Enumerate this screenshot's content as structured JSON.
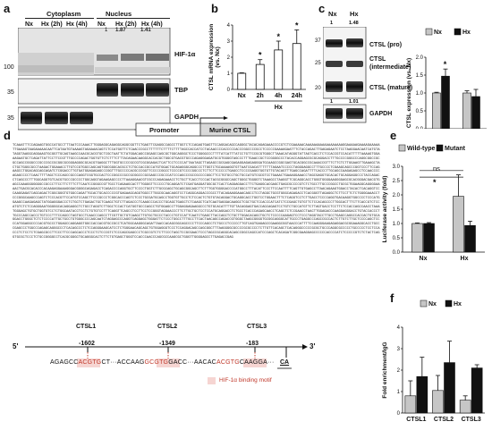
{
  "panel_a": {
    "label": "a",
    "cyto_title": "Cytoplasm",
    "nuc_title": "Nucleus",
    "lanes": [
      "Nx",
      "Hx (2h)",
      "Hx (4h)",
      "Nx",
      "Hx (2h)",
      "Hx (4h)"
    ],
    "hif_ratios": [
      "1",
      "1.87",
      "1.41"
    ],
    "markers": [
      "100",
      "35",
      "35"
    ],
    "bands": [
      "HIF-1α",
      "TBP",
      "GAPDH"
    ]
  },
  "panel_b": {
    "label": "b",
    "group_label": "Hx"
  },
  "panel_c": {
    "label": "c",
    "lanes": [
      "Nx",
      "Hx"
    ],
    "top_ratios": [
      "1",
      "1.48"
    ],
    "bottom_ratios": [
      "1",
      "1.01"
    ],
    "markers": [
      "37",
      "25",
      "20"
    ],
    "band_labels": [
      "CTSL (pro)",
      "CTSL",
      "(intermediate)",
      "CTSL (mature)",
      "GAPDH"
    ]
  },
  "panel_d": {
    "label": "d",
    "promoter_label": "Promoter",
    "gene_label": "Murine CTSL",
    "sequence": "TCAAATTTCCAGAAGTGGCCATGCCTTTAATCCCAAACTTGGGAGGCAGAGGCAGGCGGTTCTGAGTTCGAGGCCAGCCTTGGTCTCCAGAGTGAGTTCCAGGACAGCCAGGGCTACACAGAGAAACCCCGTCTCGAAAAACAAAAAAAAAAAAAAAAAAGGAAAAAGAAAAGAAAAATTGAAAGTAAGAAAAACAATTCATAATGTAAAAGTAGAAAACAGTCTCCATGGTTCTCAACCCGCCTTTTTTCTTTTCTTTTAGCCACCATCCTACAACCCCACCCCCACCCGGCCCCGCCTCCCCCGAAAAGAATTTCTACCAGACTTGAGAGAATCTCCTAAGGAACAATCATGTATAGGTAAGGCAGGAAGTGCGGTTGCAGTAAGCCAACGCACGTGCTCGCTAATTCTATGGACAGCCGGAGCCAGCGCTGGCAGGGCTCCCTGGGGCCCTTTTATCATTTATCCTGTTCCGCGTGGGCTTAAACATAGGGTATTAGTCACCTCTCCACCGTCCACATTTTTAAAAGTGGAAAGAATGCTCAGATTATTCCTTCCGTTTGCCCCAGACTGGTGTTCTCTTTCTTTACAGAACAAGGCACCACGCTGGCGTGACGTGCCCAGAGGGAGATGCGTGGGGTAGCCCTTTGAACCGCTCCGGGGCCCTACACCAGGAGCGCGCAGGACCTTTGCCCCGGGCCCAGGCGGCCGCGCCAGCCGGGCCCGCCCGCCGCGGCGCGGGAGGGCGCACGTGAGGCTTTGGTGCCCCGCCGTCGCGGAGACTCATTCCTCCCCATTAATAGCTTAGAGCCGCGAGCGAGAGGAGAGAGGGATGCAAGCCGGCGAGTGCACGGCCGCAAACCGTTTCTTCTCTTGGAAGTTGAAAGCTACTGCTGGGCGCCTAAGACTGGAAACCTTGTCCGTGGCCAGCAGTGGCGGGCACGCCTCTGCCACCGCCATGTGGACTGCAGAGGGCAGGCCCTTGGTCTGCAAAAGGTGTTAATCGACATTTTTTTAGAATCCCCCTAGGGAGGCCTTTGCCCCTCGAAGCAGCCCGGTCCCTTCCAGAAGCCTGGACAGCAGCAGATCTCGGACCTTGTGATGGAGAGAGCCCGGTTTGCCCCCACGCCCGGTTCCCCCGGCCTCCCCGTCCCCGGCCCTCTTCTTCCCCCTGAGCCTCCCCGAGGTGGTGTTGTACAGTTTGAGCCAGATTTTCACCCTTGCAGCCAAGAGAGCCTCCAACCCCAGAGCCCCTCAACTTTTAGCTCCCAGCCGCCCAGGTCGGTGCCACTCCCGGCCCGCCGCGGCCCGCGAGCCCGCCCATCCCAGCCCGCCGCCCCGGCTTCCTGTGCCTGCTGCCATGTCGCGTCCTGAAACTGAAAGGAAACCTAGCGAGGTGCACACTGCAGGAGGCCCTACCAGACCTCAGCCCTTTGGCAGGTGTCACGTGCCCGCCCCTGGCAGGTAGAAGAGCCCCTTAAAGGAACGTCGCCCAGAGAAACCTCTGCTTCACCTCCCACTACGCGGGCCAGCTGGGCTGGGGTCTAAAGCCTAAGGTTCGCAGGCACCTGGGTGGGGAAGGGGAGCGCACGGGACGACGTGAGCCAAAGGGGGGGCCGCCCTTCCTTCTTTCTTCAATCCGGGCCGTTGCCTCAGAAGCACTTTGGGGTTCCCCCTGCAGGATCTCGATGAGGATGGCGCTCACTCAGGAGGACCTTCTGAGGCACGAGCTGAGCGCCCCGTCTCTGCCTTGCCCGGCCTGCGCTGGAAGGCAGGGGAAAACTGACGCACACCCACAAGAGGAAAGGGACGGGGCAGAGACCTCAGACCCCAGGTGCTTCCCCTGGTCTTGCGCAGCTGCAGCGGCAGCTTCTTTGGTGGGGACCCCATGGCCTTTACATTCCCTTCCAATTTTCAGTTGTGAGCCTTAACAGAAGTGGACCTACACTCACAGGTCCCAAGGAGATCAGCAGACTCGGCGGGTGTGGCCAGATTGCACTGCACCCCCGTGAGAAGCAGGTGGCCTTGGCGCAACAGGTCCTCAGGCAGGACCCGCCTTACAGAAGGAAACAGCCTCCTAGGCTGCGTGGGCAGAGACCTCACGGGTTAGAGGCTCTTCCTTCTCTGGGGAAACCTCCCGGGCAAGCCCAGTCTCCCACGTTCCATGTCCAGCTTCCCGCCCTCGGCACCCAGTCTCCCTGCGATGCAGCCTGGTGTTGCCTCTCCACTCTGTGTACAGGACTGCAGGCACCTGGTCCTGGAACTTTCTCAGGTCCTCTTGACCTCCCCAGGTGACAAGGTGGCCCCTCCCATGGAAGCCAAGAGAGCTATGGAGGGACCCTCTGCTCTGAGACTGCTCAAGCTGTCTTAGACCCTCAAGCCCACCCTGCAGCTGAGCTCTCAAGCTCATCAATGAGGACAAGGCTCGCTGCTCCACCCATCATCTCCGAGCTGTGTTCTCCACAGCCCTTGGCACTTTCTTCACCGTCTCCATGTCTCTCCAGGGAATGGGGGCACAGGAGGCTCTGCCTAGGTCTTGGCTCCACTCATGGTGCCCAGCCTGTGGAGCCTTGGAGGAGAAGGCCCTGTGCACATTTTGTTACAGGAGTGACCAGCAGAGTCCTGTCTGCCATGTTCTTAGTGACCTCCTTCTCCACCAGCCAACCTAAATGGGAGCTGTGCTGGTGTCCTCTGGCAATACCTCCTCTGTGTCCTTTCAGGTTCAGCCTCCTTCCTCCGGGTAGGAACCCTTCTTGCTGCTCCTCCATGCAGGACCTCTGCCTCACCCAGAGCAACCTCAGCTCTCCGAACCTAACTTGGAGACCCAAGGAGGGACCTGTACCACCCTTGCCCAGCCACCCTGTCCCTTTCCAGCCTAGTGCCTCAACCCAGCCTTCGTTGCTGTCAAGCTTGTGCTGCCCTACCCTGTCCATTCAATCTGAGCTTACCAGCTCTGCTTGGACACAGCTGCTCTCCCCCAAGAGTCCTCCCTAGGTACCTTGCCTGAGCCAGGCCACCACTGTGCAGGACCTGGGCTCTCTCCCCATTGCTGCCTGTGGGCCCCAGCAATCTAGGAGCCCAGGTCAGGAGCTGGGATTCTCCCTGGCCTTTGCCTTCACTAACAGCCAGACCGTGGGCTAAGCGGGGTGCGGCAGGGCATTGCCCTGAGGCCCAGCCGCCACTCTTGTCTTGCTCCCCAGCTCCCCATGGAGGCCCCACGTGCCCTGGAGCCAGGAGGTGGCCACCACGTGCCGCCTCATGGCAAGGGCAGATTAACCACAGCGGCAGCCCCTTCCCAGCCTCTGCCCTCCCCCTTGTCAGTGAGAGCCGAAGGCGGTAACCCATTTTCCAAGGGAAGAGAGGACGCGGAAAGGCACCTGCCCGAGCCCTGGCCCAGAGCAGGGCCCTCACAGCCCTCTCCAGGGAAGCATCCTCTGGGAACAGCAGCTGTGGAGGGTCCCTCCAGGACAGCCAGCGGCTTTAAGGGGCGCCCCGCGCCCCTCTTGTTCACAGCTCACAGGGCCCCCGCGCTGCCCAGGCGCCCCCTGCCCCCTCCTCCACCCTCTCCTCTCGAGCGCCTTCCCTTCCCAGCACCCTCCCTCTCCCGTCTCCCAGCGAGCCCTCGCCGTCTCTTCCCTAGCTCCGCGAACTCCCTAGCCGCAGGCACAGCCGGCCAGCCATCCCAGCTCACAGATCGGCGAAGGAGCCCCCCACCCCATCTCCCCCGTCTCTACTCAGGTGCGCTCCCTCTGCCGGGGCCTCACGCGGGCTGCAGGGCACTCTTCTGTGAGCTGGGTCCACCCAACCCAGCGCCAAGCGCTGGGTTGGGGAGCCTTGAGACCGAG",
    "sites": [
      "CTSL1",
      "CTSL2",
      "CTSL3"
    ],
    "positions": [
      "-1602",
      "-1349",
      "-183"
    ],
    "prime5": "5'",
    "prime3": "3'",
    "frag1_pre": "AGAGCC",
    "frag1_motif": "ACGTG",
    "frag1_post": "CT···ACCAAG",
    "frag2_motif": "GCGTG",
    "frag2_post": "GACC···AACAC",
    "frag3_motif": "ACGTG",
    "frag3_post": "CAAGGA···",
    "tss": "CA",
    "motif_legend": "HIF-1α binding motif"
  },
  "panel_e": {
    "label": "e",
    "sig_star": "*",
    "sig_ns": "ns"
  },
  "panel_f": {
    "label": "f"
  },
  "colors": {
    "nx": "#c6c6c6",
    "hx": "#111111",
    "motif": "#c0392b",
    "motif_bg": "#f6d5d2"
  },
  "chart_data": [
    {
      "id": "b",
      "type": "bar",
      "categories": [
        "Nx",
        "2h",
        "4h",
        "24h"
      ],
      "values": [
        1.0,
        1.55,
        2.45,
        2.85
      ],
      "errors": [
        0.03,
        0.3,
        0.55,
        0.85
      ],
      "significance": [
        "",
        "*",
        "*",
        "*"
      ],
      "ylabel": "CTSL mRNA expression\n(vs. Nx)",
      "ylim": [
        0,
        4
      ],
      "yticks": [
        0,
        1,
        2,
        3,
        4
      ]
    },
    {
      "id": "c",
      "type": "bar",
      "categories": [
        "CTSL (pro)",
        "CTSL (mature)"
      ],
      "series": [
        {
          "name": "Nx",
          "values": [
            1.0,
            1.0
          ],
          "errors": [
            0.02,
            0.06
          ]
        },
        {
          "name": "Hx",
          "values": [
            1.47,
            0.9
          ],
          "errors": [
            0.2,
            0.2
          ]
        }
      ],
      "significance": [
        "*",
        ""
      ],
      "ylabel": "CTSL expression (vs. Nx)",
      "ylim": [
        0,
        2
      ],
      "yticks": [
        0,
        0.5,
        1,
        1.5,
        2
      ],
      "legend": "top"
    },
    {
      "id": "e",
      "type": "bar",
      "categories": [
        "Nx",
        "Hx"
      ],
      "series": [
        {
          "name": "Wild-type",
          "values": [
            1.0,
            1.95
          ],
          "errors": [
            0.02,
            0.75
          ]
        },
        {
          "name": "Mutant",
          "values": [
            1.0,
            0.93
          ],
          "errors": [
            0.03,
            0.15
          ]
        }
      ],
      "ylabel": "Luciferase activity (fold)",
      "ylim": [
        0,
        3
      ],
      "yticks": [
        0,
        0.5,
        1,
        1.5,
        2,
        2.5,
        3
      ],
      "legend": "top"
    },
    {
      "id": "f",
      "type": "bar",
      "categories": [
        "CTSL1",
        "CTSL2",
        "CTSL3"
      ],
      "series": [
        {
          "name": "Nx",
          "values": [
            0.8,
            1.05,
            0.6
          ],
          "errors": [
            0.7,
            0.7,
            0.2
          ]
        },
        {
          "name": "Hx",
          "values": [
            1.7,
            2.35,
            2.1
          ],
          "errors": [
            0.9,
            1.0,
            0.15
          ]
        }
      ],
      "ylabel": "Fold enrichment/IgG",
      "ylim": [
        0,
        4
      ],
      "yticks": [
        0,
        1,
        2,
        3,
        4
      ],
      "legend": "top"
    }
  ]
}
